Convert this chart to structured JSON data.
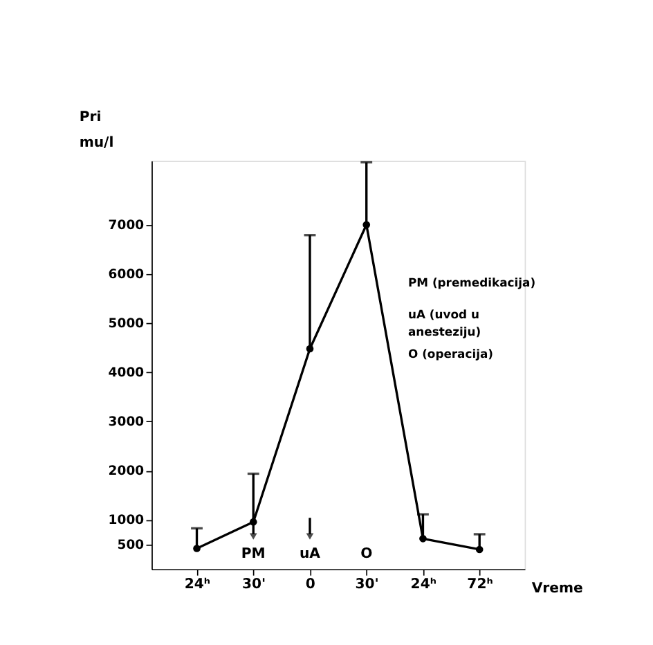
{
  "chart_data": {
    "type": "line",
    "ylabel": "Pri\nmu/l",
    "xlabel": "Vreme",
    "categories": [
      "24ʰ",
      "30'",
      "0",
      "30'",
      "24ʰ",
      "72ʰ"
    ],
    "series": [
      {
        "color": "#000000",
        "values": [
          420,
          960,
          4480,
          7000,
          620,
          400
        ],
        "errors": [
          [
            420,
            830
          ],
          [
            960,
            1940
          ],
          [
            4480,
            6790
          ],
          [
            7000,
            8270
          ],
          [
            620,
            1115
          ],
          [
            400,
            710
          ]
        ]
      }
    ],
    "ylim": [
      0,
      8300
    ],
    "yticks": [
      500,
      1000,
      2000,
      3000,
      4000,
      5000,
      6000,
      7000
    ],
    "annotations": [
      "PM",
      "uA",
      "O",
      "PM (premedikacija)",
      "uA (uvod u\n      anesteziju)",
      "O (operacija)"
    ],
    "grid": false,
    "marker": "circle",
    "line_style": "solid"
  }
}
